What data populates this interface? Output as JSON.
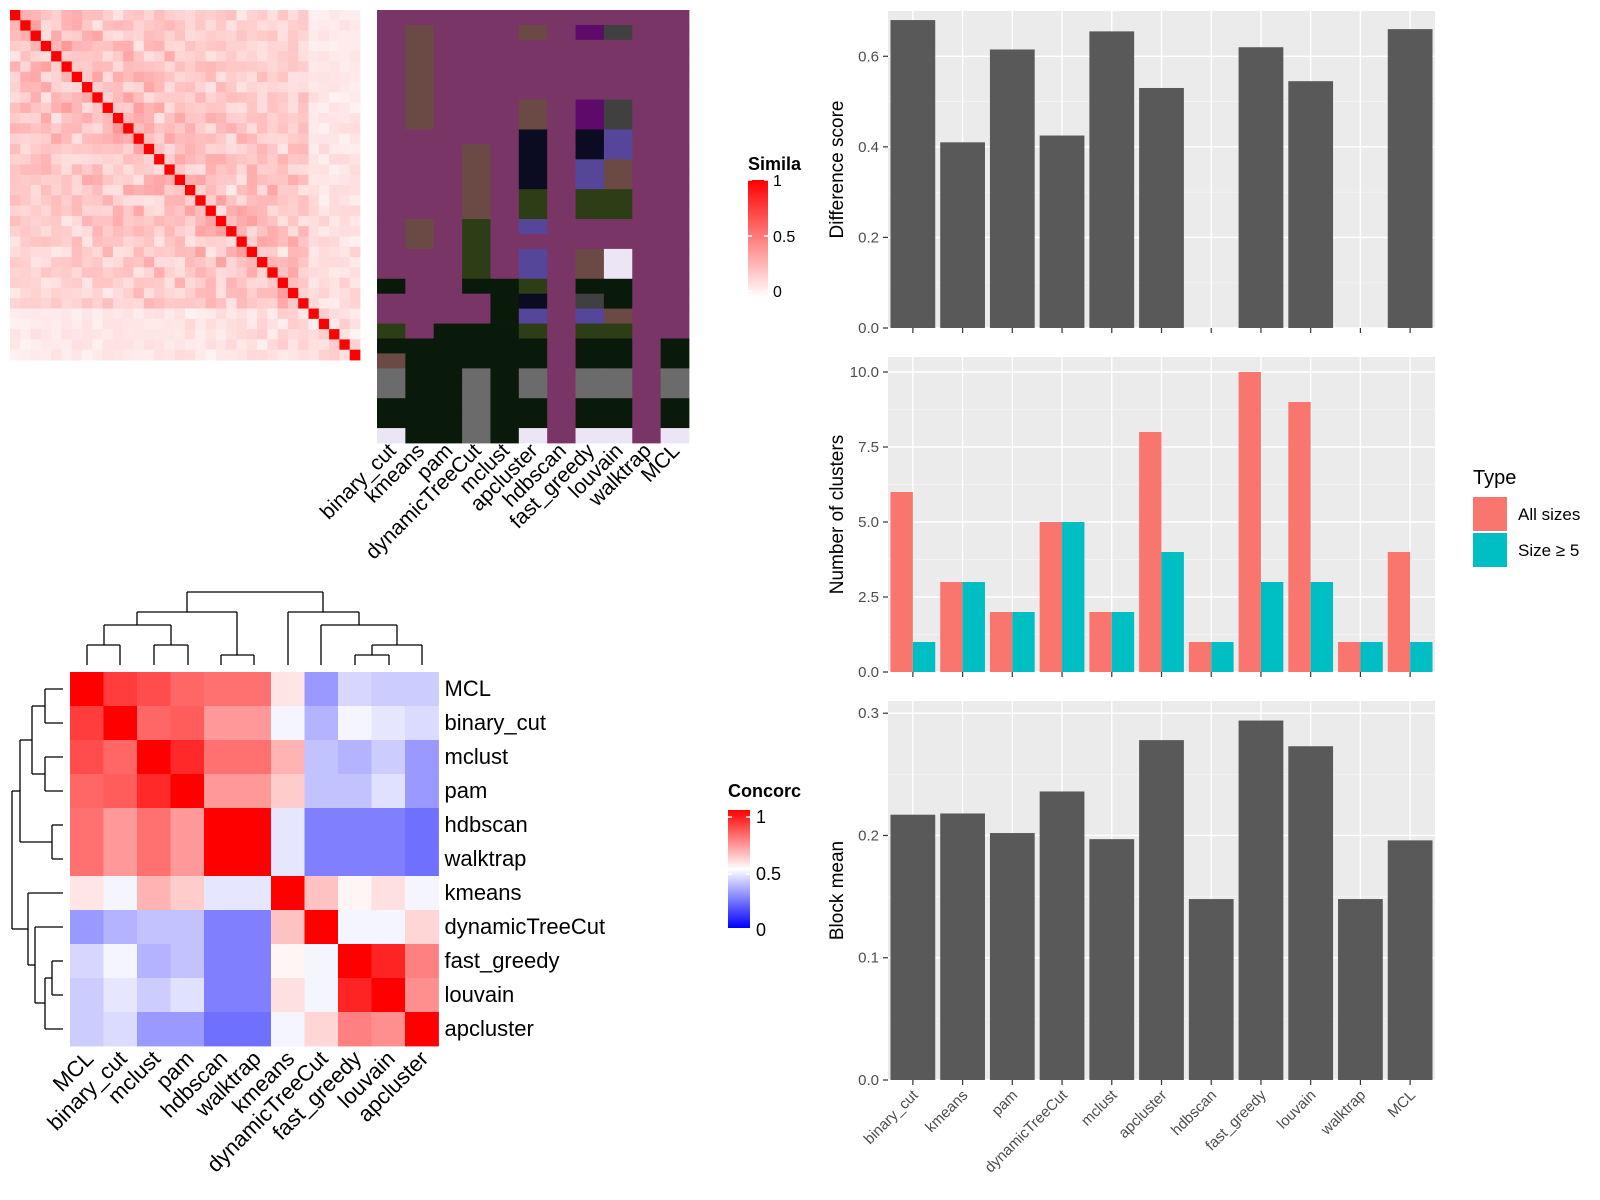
{
  "colors": {
    "panel_bg": "#ebebeb",
    "grid_major": "#ffffff",
    "bar_dark": "#595959",
    "all_sizes": "#f8766d",
    "size_ge5": "#00bfc4",
    "sim_high": "#ff0000",
    "conc_low": "#0000ff",
    "class_base": "#7a3567",
    "class_palette": [
      "#7a3567",
      "#6b4a45",
      "#0a1a0a",
      "#2d3d16",
      "#0b0b22",
      "#5e0a6b",
      "#55469a",
      "#6b6b6b",
      "#ebe5f5",
      "#404040",
      "#6b4a63"
    ]
  },
  "similarity_legend": {
    "title": "Simila",
    "ticks": [
      "1",
      "0.5",
      "0"
    ]
  },
  "concordance_legend": {
    "title": "Concorc",
    "ticks": [
      "1",
      "0.5",
      "0"
    ]
  },
  "class_panel_labels": [
    "binary_cut",
    "kmeans",
    "pam",
    "dynamicTreeCut",
    "mclust",
    "apcluster",
    "hdbscan",
    "fast_greedy",
    "louvain",
    "walktrap",
    "MCL"
  ],
  "chart_data": [
    {
      "type": "heatmap",
      "name_hint": "term similarity",
      "size": 34,
      "diagonal": 1,
      "value_range": [
        0,
        1
      ]
    },
    {
      "type": "heatmap",
      "name_hint": "cluster assignments",
      "columns": [
        "binary_cut",
        "kmeans",
        "pam",
        "dynamicTreeCut",
        "mclust",
        "apcluster",
        "hdbscan",
        "fast_greedy",
        "louvain",
        "walktrap",
        "MCL"
      ]
    },
    {
      "type": "heatmap",
      "rows": [
        "MCL",
        "binary_cut",
        "mclust",
        "pam",
        "hdbscan",
        "walktrap",
        "kmeans",
        "dynamicTreeCut",
        "fast_greedy",
        "louvain",
        "apcluster"
      ],
      "columns": [
        "MCL",
        "binary_cut",
        "mclust",
        "pam",
        "hdbscan",
        "walktrap",
        "kmeans",
        "dynamicTreeCut",
        "fast_greedy",
        "louvain",
        "apcluster"
      ],
      "values": [
        [
          1.0,
          0.88,
          0.85,
          0.8,
          0.78,
          0.78,
          0.55,
          0.3,
          0.42,
          0.4,
          0.4
        ],
        [
          0.88,
          1.0,
          0.8,
          0.82,
          0.7,
          0.7,
          0.48,
          0.35,
          0.48,
          0.45,
          0.43
        ],
        [
          0.85,
          0.8,
          1.0,
          0.92,
          0.78,
          0.78,
          0.65,
          0.38,
          0.35,
          0.4,
          0.3
        ],
        [
          0.8,
          0.82,
          0.92,
          1.0,
          0.7,
          0.7,
          0.6,
          0.38,
          0.38,
          0.44,
          0.3
        ],
        [
          0.78,
          0.7,
          0.78,
          0.7,
          1.0,
          1.0,
          0.45,
          0.25,
          0.25,
          0.25,
          0.22
        ],
        [
          0.78,
          0.7,
          0.78,
          0.7,
          1.0,
          1.0,
          0.45,
          0.25,
          0.25,
          0.25,
          0.22
        ],
        [
          0.55,
          0.48,
          0.65,
          0.6,
          0.45,
          0.45,
          1.0,
          0.62,
          0.52,
          0.56,
          0.48
        ],
        [
          0.3,
          0.35,
          0.38,
          0.38,
          0.25,
          0.25,
          0.62,
          1.0,
          0.48,
          0.48,
          0.58
        ],
        [
          0.42,
          0.48,
          0.35,
          0.38,
          0.25,
          0.25,
          0.52,
          0.48,
          1.0,
          0.93,
          0.75
        ],
        [
          0.4,
          0.45,
          0.4,
          0.44,
          0.25,
          0.25,
          0.56,
          0.48,
          0.93,
          1.0,
          0.72
        ],
        [
          0.4,
          0.43,
          0.3,
          0.3,
          0.22,
          0.22,
          0.48,
          0.58,
          0.75,
          0.72,
          1.0
        ]
      ],
      "value_range": [
        0,
        1
      ]
    },
    {
      "type": "bar",
      "categories": [
        "binary_cut",
        "kmeans",
        "pam",
        "dynamicTreeCut",
        "mclust",
        "apcluster",
        "hdbscan",
        "fast_greedy",
        "louvain",
        "walktrap",
        "MCL"
      ],
      "values": [
        0.68,
        0.41,
        0.615,
        0.425,
        0.655,
        0.53,
        null,
        0.62,
        0.545,
        null,
        0.66
      ],
      "ylabel": "Difference score",
      "ylim": [
        0,
        0.7
      ],
      "yticks": [
        "0.0",
        "0.2",
        "0.4",
        "0.6"
      ],
      "grid": true
    },
    {
      "type": "bar",
      "categories": [
        "binary_cut",
        "kmeans",
        "pam",
        "dynamicTreeCut",
        "mclust",
        "apcluster",
        "hdbscan",
        "fast_greedy",
        "louvain",
        "walktrap",
        "MCL"
      ],
      "series": [
        {
          "name": "All sizes",
          "values": [
            6,
            3,
            2,
            5,
            2,
            8,
            1,
            10,
            9,
            1,
            4
          ]
        },
        {
          "name": "Size ≥ 5",
          "values": [
            1,
            3,
            2,
            5,
            2,
            4,
            1,
            3,
            3,
            1,
            1
          ]
        }
      ],
      "ylabel": "Number of clusters",
      "ylim": [
        0,
        10.5
      ],
      "yticks": [
        "0.0",
        "2.5",
        "5.0",
        "7.5",
        "10.0"
      ],
      "legend_title": "Type",
      "legend_position": "right",
      "grid": true
    },
    {
      "type": "bar",
      "categories": [
        "binary_cut",
        "kmeans",
        "pam",
        "dynamicTreeCut",
        "mclust",
        "apcluster",
        "hdbscan",
        "fast_greedy",
        "louvain",
        "walktrap",
        "MCL"
      ],
      "values": [
        0.217,
        0.218,
        0.202,
        0.236,
        0.197,
        0.278,
        0.148,
        0.294,
        0.273,
        0.148,
        0.196
      ],
      "ylabel": "Block mean",
      "ylim": [
        0,
        0.31
      ],
      "yticks": [
        "0.0",
        "0.1",
        "0.2",
        "0.3"
      ],
      "grid": true
    }
  ]
}
